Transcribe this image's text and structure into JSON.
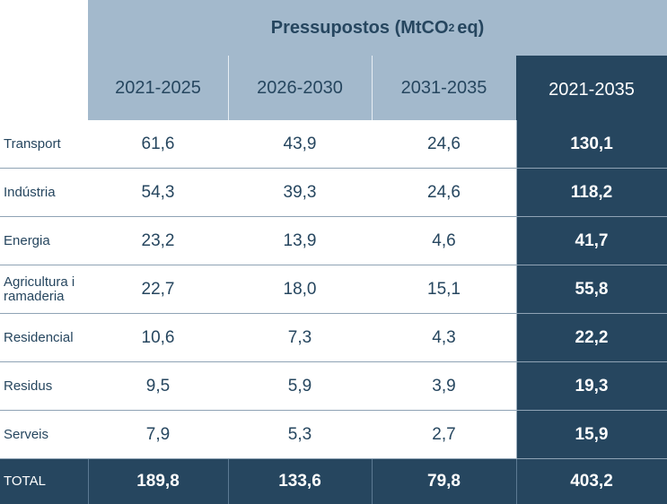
{
  "table": {
    "title_prefix": "Pressupostos (MtCO",
    "title_sub": "2",
    "title_suffix": " eq)",
    "columns": [
      "2021-2025",
      "2026-2030",
      "2031-2035",
      "2021-2035"
    ],
    "rows": [
      {
        "label": "Transport",
        "values": [
          "61,6",
          "43,9",
          "24,6",
          "130,1"
        ]
      },
      {
        "label": "Indústria",
        "values": [
          "54,3",
          "39,3",
          "24,6",
          "118,2"
        ]
      },
      {
        "label": "Energia",
        "values": [
          "23,2",
          "13,9",
          "4,6",
          "41,7"
        ]
      },
      {
        "label": "Agricultura i ramaderia",
        "values": [
          "22,7",
          "18,0",
          "15,1",
          "55,8"
        ]
      },
      {
        "label": "Residencial",
        "values": [
          "10,6",
          "7,3",
          "4,3",
          "22,2"
        ]
      },
      {
        "label": "Residus",
        "values": [
          "9,5",
          "5,9",
          "3,9",
          "19,3"
        ]
      },
      {
        "label": "Serveis",
        "values": [
          "7,9",
          "5,3",
          "2,7",
          "15,9"
        ]
      }
    ],
    "total": {
      "label": "TOTAL",
      "values": [
        "189,8",
        "133,6",
        "79,8",
        "403,2"
      ]
    }
  },
  "colors": {
    "header_light": "#a3b9cc",
    "header_dark": "#26465f",
    "text": "#26465f"
  }
}
